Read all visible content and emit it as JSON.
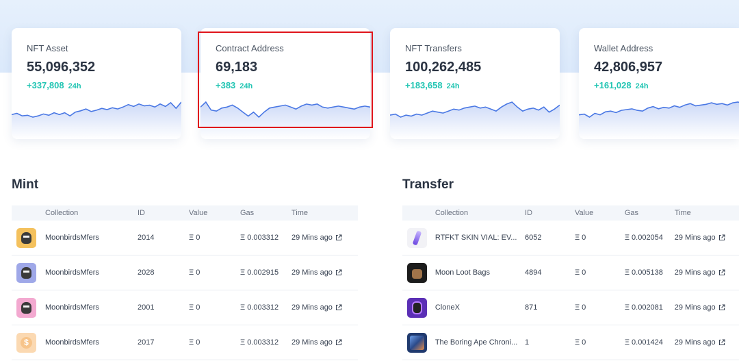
{
  "stats": [
    {
      "label": "NFT Asset",
      "value": "55,096,352",
      "change": "+337,808",
      "period": "24h",
      "spark": [
        20,
        18,
        22,
        21,
        24,
        22,
        19,
        21,
        17,
        20,
        17,
        22,
        16,
        14,
        11,
        15,
        13,
        10,
        12,
        9,
        11,
        8,
        4,
        7,
        3,
        6,
        5,
        8,
        3,
        7,
        1,
        10,
        0
      ]
    },
    {
      "label": "Contract Address",
      "value": "69,183",
      "change": "+383",
      "period": "24h",
      "spark": [
        5,
        0,
        8,
        9,
        6,
        5,
        3,
        6,
        10,
        14,
        10,
        15,
        10,
        6,
        5,
        4,
        3,
        5,
        7,
        4,
        2,
        3,
        2,
        5,
        6,
        5,
        4,
        5,
        6,
        7,
        5,
        4,
        5
      ]
    },
    {
      "label": "NFT Transfers",
      "value": "100,262,485",
      "change": "+183,658",
      "period": "24h",
      "spark": [
        16,
        15,
        18,
        16,
        17,
        15,
        16,
        14,
        12,
        13,
        14,
        12,
        10,
        11,
        9,
        8,
        7,
        9,
        8,
        10,
        12,
        8,
        5,
        3,
        8,
        12,
        10,
        9,
        11,
        8,
        13,
        10,
        6
      ]
    },
    {
      "label": "Wallet Address",
      "value": "42,806,957",
      "change": "+161,028",
      "period": "24h",
      "spark": [
        18,
        17,
        21,
        16,
        18,
        14,
        13,
        15,
        12,
        11,
        10,
        12,
        13,
        9,
        7,
        10,
        8,
        9,
        6,
        8,
        5,
        3,
        6,
        5,
        4,
        2,
        4,
        3,
        5,
        2,
        1,
        3,
        2
      ]
    }
  ],
  "mint": {
    "title": "Mint",
    "columns": {
      "collection": "Collection",
      "id": "ID",
      "value": "Value",
      "gas": "Gas",
      "time": "Time"
    },
    "rows": [
      {
        "collection": "MoonbirdsMfers",
        "id": "2014",
        "value": "Ξ 0",
        "gas": "Ξ 0.003312",
        "time": "29 Mins ago",
        "thumb_bg": "#f4c15d",
        "thumb_kind": "face"
      },
      {
        "collection": "MoonbirdsMfers",
        "id": "2028",
        "value": "Ξ 0",
        "gas": "Ξ 0.002915",
        "time": "29 Mins ago",
        "thumb_bg": "#9fa8e8",
        "thumb_kind": "face"
      },
      {
        "collection": "MoonbirdsMfers",
        "id": "2001",
        "value": "Ξ 0",
        "gas": "Ξ 0.003312",
        "time": "29 Mins ago",
        "thumb_bg": "#f3a9d0",
        "thumb_kind": "face"
      },
      {
        "collection": "MoonbirdsMfers",
        "id": "2017",
        "value": "Ξ 0",
        "gas": "Ξ 0.003312",
        "time": "29 Mins ago",
        "thumb_bg": "#fbd9b2",
        "thumb_kind": "coin"
      }
    ]
  },
  "transfer": {
    "title": "Transfer",
    "columns": {
      "collection": "Collection",
      "id": "ID",
      "value": "Value",
      "gas": "Gas",
      "time": "Time"
    },
    "rows": [
      {
        "collection": "RTFKT SKIN VIAL: EV...",
        "id": "6052",
        "value": "Ξ 0",
        "gas": "Ξ 0.002054",
        "time": "29 Mins ago",
        "thumb_bg": "#f2f2f6",
        "thumb_kind": "vial"
      },
      {
        "collection": "Moon Loot Bags",
        "id": "4894",
        "value": "Ξ 0",
        "gas": "Ξ 0.005138",
        "time": "29 Mins ago",
        "thumb_bg": "#1c1c1c",
        "thumb_kind": "bag"
      },
      {
        "collection": "CloneX",
        "id": "871",
        "value": "Ξ 0",
        "gas": "Ξ 0.002081",
        "time": "29 Mins ago",
        "thumb_bg": "#5b2fb5",
        "thumb_kind": "robot"
      },
      {
        "collection": "The Boring Ape Chroni...",
        "id": "1",
        "value": "Ξ 0",
        "gas": "Ξ 0.001424",
        "time": "29 Mins ago",
        "thumb_bg": "#203a6e",
        "thumb_kind": "ape"
      }
    ]
  },
  "colors": {
    "accent": "#4a78e4",
    "positive": "#22c5b3",
    "highlight": "#e0141b"
  }
}
